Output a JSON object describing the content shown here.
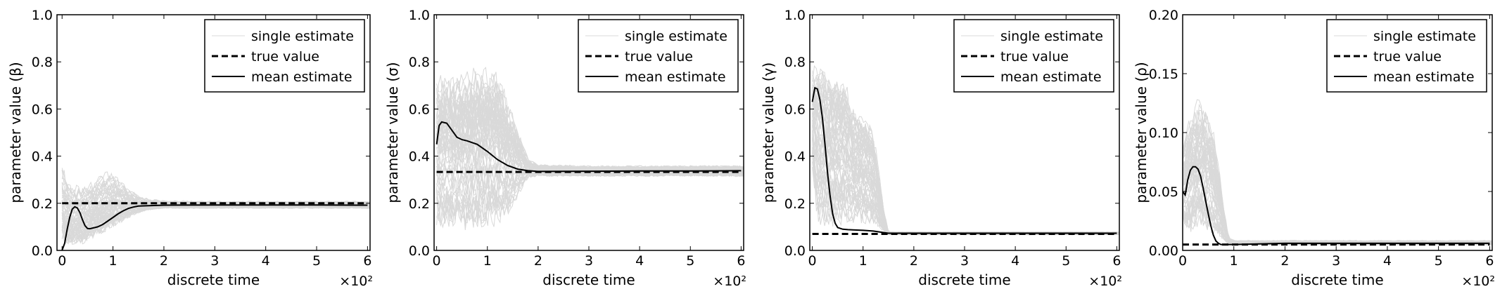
{
  "chart_data": [
    {
      "type": "line",
      "x_multiplier_label": "×10²",
      "xlabel": "discrete time",
      "ylabel": "parameter value (β)",
      "xlim": [
        -0.1,
        6.05
      ],
      "ylim": [
        0.0,
        1.0
      ],
      "xticks": [
        "0",
        "1",
        "2",
        "3",
        "4",
        "5",
        "6"
      ],
      "yticks": [
        "0.0",
        "0.2",
        "0.4",
        "0.6",
        "0.8",
        "1.0"
      ],
      "legend": [
        "single estimate",
        "true value",
        "mean estimate"
      ],
      "legend_position": "upper-right",
      "true_value": 0.2,
      "mean_estimate": {
        "x": [
          0,
          0.05,
          0.1,
          0.15,
          0.2,
          0.25,
          0.3,
          0.35,
          0.4,
          0.45,
          0.5,
          0.55,
          0.6,
          0.7,
          0.8,
          0.9,
          1.0,
          1.1,
          1.2,
          1.3,
          1.4,
          1.5,
          1.7,
          2.0,
          3.0,
          4.0,
          5.0,
          6.0
        ],
        "y": [
          0.0,
          0.03,
          0.09,
          0.14,
          0.175,
          0.185,
          0.18,
          0.16,
          0.13,
          0.105,
          0.093,
          0.092,
          0.095,
          0.1,
          0.11,
          0.125,
          0.14,
          0.155,
          0.168,
          0.178,
          0.184,
          0.188,
          0.19,
          0.192,
          0.193,
          0.193,
          0.193,
          0.192
        ]
      },
      "single_estimate_band": {
        "x": [
          0,
          0.1,
          0.2,
          0.3,
          0.4,
          0.5,
          0.6,
          0.7,
          0.8,
          1.0,
          1.2,
          1.4,
          1.6,
          1.8,
          2.0,
          3.0,
          4.0,
          5.0,
          6.0
        ],
        "lower": [
          0.0,
          0.0,
          0.0,
          0.0,
          0.0,
          0.02,
          0.03,
          0.04,
          0.05,
          0.08,
          0.11,
          0.14,
          0.16,
          0.17,
          0.175,
          0.175,
          0.175,
          0.175,
          0.175
        ],
        "upper": [
          0.4,
          0.32,
          0.3,
          0.3,
          0.3,
          0.31,
          0.32,
          0.34,
          0.36,
          0.35,
          0.3,
          0.26,
          0.23,
          0.22,
          0.215,
          0.212,
          0.212,
          0.212,
          0.212
        ]
      }
    },
    {
      "type": "line",
      "x_multiplier_label": "×10²",
      "xlabel": "discrete time",
      "ylabel": "parameter value (σ)",
      "xlim": [
        -0.05,
        6.05
      ],
      "ylim": [
        0.0,
        1.0
      ],
      "xticks": [
        "0",
        "1",
        "2",
        "3",
        "4",
        "5",
        "6"
      ],
      "yticks": [
        "0.0",
        "0.2",
        "0.4",
        "0.6",
        "0.8",
        "1.0"
      ],
      "legend": [
        "single estimate",
        "true value",
        "mean estimate"
      ],
      "legend_position": "upper-right",
      "true_value": 0.333,
      "mean_estimate": {
        "x": [
          0,
          0.05,
          0.1,
          0.2,
          0.3,
          0.4,
          0.5,
          0.6,
          0.8,
          1.0,
          1.2,
          1.4,
          1.6,
          1.8,
          2.0,
          3.0,
          4.0,
          5.0,
          6.0
        ],
        "y": [
          0.45,
          0.53,
          0.545,
          0.54,
          0.51,
          0.48,
          0.47,
          0.465,
          0.45,
          0.42,
          0.385,
          0.36,
          0.345,
          0.338,
          0.335,
          0.336,
          0.337,
          0.337,
          0.338
        ]
      },
      "single_estimate_band": {
        "x": [
          0,
          0.1,
          0.2,
          0.4,
          0.6,
          0.8,
          1.0,
          1.2,
          1.4,
          1.6,
          1.8,
          2.0,
          3.0,
          4.0,
          5.0,
          6.0
        ],
        "lower": [
          0.05,
          0.02,
          0.03,
          0.03,
          0.02,
          0.02,
          0.03,
          0.06,
          0.1,
          0.2,
          0.3,
          0.31,
          0.31,
          0.31,
          0.31,
          0.31
        ],
        "upper": [
          0.8,
          0.82,
          0.82,
          0.83,
          0.84,
          0.85,
          0.86,
          0.84,
          0.7,
          0.55,
          0.4,
          0.37,
          0.365,
          0.365,
          0.365,
          0.365
        ]
      }
    },
    {
      "type": "line",
      "x_multiplier_label": "×10²",
      "xlabel": "discrete time",
      "ylabel": "parameter value (γ)",
      "xlim": [
        -0.05,
        6.05
      ],
      "ylim": [
        0.0,
        1.0
      ],
      "xticks": [
        "0",
        "1",
        "2",
        "3",
        "4",
        "5",
        "6"
      ],
      "yticks": [
        "0.0",
        "0.2",
        "0.4",
        "0.6",
        "0.8",
        "1.0"
      ],
      "legend": [
        "single estimate",
        "true value",
        "mean estimate"
      ],
      "legend_position": "upper-right",
      "true_value": 0.07,
      "mean_estimate": {
        "x": [
          0,
          0.05,
          0.1,
          0.15,
          0.2,
          0.25,
          0.3,
          0.35,
          0.4,
          0.45,
          0.5,
          0.6,
          0.7,
          0.8,
          1.0,
          1.2,
          1.4,
          1.5,
          2.0,
          3.0,
          4.0,
          5.0,
          6.0
        ],
        "y": [
          0.63,
          0.69,
          0.685,
          0.64,
          0.56,
          0.45,
          0.33,
          0.23,
          0.155,
          0.115,
          0.097,
          0.09,
          0.088,
          0.087,
          0.085,
          0.082,
          0.076,
          0.073,
          0.073,
          0.073,
          0.073,
          0.073,
          0.073
        ]
      },
      "single_estimate_band": {
        "x": [
          0,
          0.1,
          0.2,
          0.3,
          0.4,
          0.5,
          0.6,
          0.8,
          1.0,
          1.2,
          1.4,
          1.5,
          2.0,
          3.0,
          4.0,
          5.0,
          6.0
        ],
        "lower": [
          0.3,
          0.05,
          0.05,
          0.05,
          0.05,
          0.06,
          0.06,
          0.065,
          0.065,
          0.065,
          0.065,
          0.065,
          0.065,
          0.065,
          0.065,
          0.065,
          0.065
        ],
        "upper": [
          0.82,
          0.85,
          0.84,
          0.8,
          0.8,
          0.78,
          0.8,
          0.65,
          0.62,
          0.55,
          0.2,
          0.08,
          0.08,
          0.08,
          0.08,
          0.08,
          0.08
        ]
      }
    },
    {
      "type": "line",
      "x_multiplier_label": "×10²",
      "xlabel": "discrete time",
      "ylabel": "parameter value (ρ)",
      "xlim": [
        0.0,
        6.05
      ],
      "ylim": [
        0.0,
        0.2
      ],
      "xticks": [
        "0",
        "1",
        "2",
        "3",
        "4",
        "5",
        "6"
      ],
      "yticks": [
        "0.00",
        "0.05",
        "0.10",
        "0.15",
        "0.20"
      ],
      "legend": [
        "single estimate",
        "true value",
        "mean estimate"
      ],
      "legend_position": "upper-right",
      "true_value": 0.005,
      "mean_estimate": {
        "x": [
          0,
          0.05,
          0.1,
          0.15,
          0.2,
          0.25,
          0.3,
          0.35,
          0.4,
          0.45,
          0.5,
          0.55,
          0.6,
          0.65,
          0.7,
          0.75,
          0.8,
          0.9,
          1.0,
          2.0,
          3.0,
          4.0,
          5.0,
          6.0
        ],
        "y": [
          0.05,
          0.047,
          0.06,
          0.068,
          0.071,
          0.071,
          0.069,
          0.063,
          0.053,
          0.042,
          0.031,
          0.021,
          0.013,
          0.008,
          0.006,
          0.005,
          0.005,
          0.005,
          0.005,
          0.006,
          0.006,
          0.006,
          0.006,
          0.006
        ]
      },
      "single_estimate_band": {
        "x": [
          0,
          0.1,
          0.2,
          0.3,
          0.4,
          0.5,
          0.6,
          0.7,
          0.8,
          0.9,
          1.0,
          2.0,
          3.0,
          4.0,
          5.0,
          6.0
        ],
        "lower": [
          0.01,
          0.003,
          0.003,
          0.004,
          0.004,
          0.004,
          0.004,
          0.004,
          0.004,
          0.004,
          0.004,
          0.004,
          0.004,
          0.004,
          0.004,
          0.004
        ],
        "upper": [
          0.1,
          0.12,
          0.135,
          0.14,
          0.14,
          0.13,
          0.11,
          0.08,
          0.04,
          0.012,
          0.009,
          0.009,
          0.009,
          0.009,
          0.009,
          0.009
        ]
      }
    }
  ]
}
